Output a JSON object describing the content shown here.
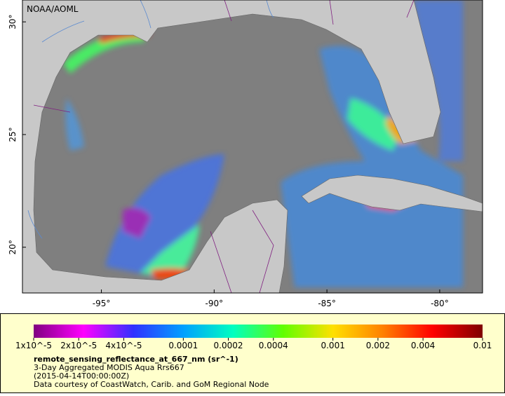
{
  "map": {
    "credit": "NOAA/AOML",
    "extent": {
      "lon": [
        -98.5,
        -78.1
      ],
      "lat": [
        17.97,
        30.97
      ]
    },
    "lon_ticks": [
      {
        "value": -95,
        "label": "-95°"
      },
      {
        "value": -90,
        "label": "-90°"
      },
      {
        "value": -85,
        "label": "-85°"
      },
      {
        "value": -80,
        "label": "-80°"
      }
    ],
    "lat_ticks": [
      {
        "value": 20,
        "label": "20°"
      },
      {
        "value": 25,
        "label": "25°"
      },
      {
        "value": 30,
        "label": "30°"
      }
    ]
  },
  "colorbar": {
    "scale": "log",
    "range": [
      1e-05,
      0.01
    ],
    "colors": [
      "#800080",
      "#ff00ff",
      "#3030ff",
      "#00a0ff",
      "#00ffc0",
      "#60ff00",
      "#ffe000",
      "#ff8000",
      "#ff0000",
      "#800000"
    ],
    "ticks": [
      {
        "value": 1e-05,
        "label": "1x10^-5"
      },
      {
        "value": 2e-05,
        "label": "2x10^-5"
      },
      {
        "value": 4e-05,
        "label": "4x10^-5"
      },
      0.0001,
      0.0002,
      0.0004,
      0.001,
      0.002,
      0.004,
      0.01
    ],
    "variable": "remote_sensing_reflectance_at_667_nm (sr^-1)",
    "lines": [
      "3-Day Aggregated MODIS Aqua Rrs667",
      "(2015-04-14T00:00:00Z)",
      "Data courtesy of CoastWatch, Carib. and GoM Regional Node"
    ]
  }
}
